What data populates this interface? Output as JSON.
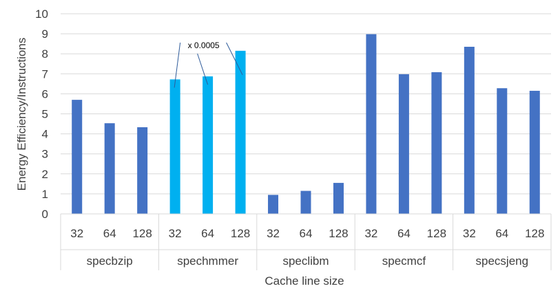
{
  "chart_data": {
    "type": "bar",
    "title": "",
    "xlabel": "Cache line size",
    "ylabel": "Energy Efficiency/Instructions",
    "ylim": [
      0,
      10
    ],
    "yticks": [
      "0",
      "1",
      "2",
      "3",
      "4",
      "5",
      "6",
      "7",
      "8",
      "9",
      "10"
    ],
    "grid": true,
    "groups": [
      {
        "name": "specbzip",
        "categories": [
          "32",
          "64",
          "128"
        ],
        "values": [
          5.7,
          4.53,
          4.33
        ],
        "color": "#4472C4"
      },
      {
        "name": "spechmmer",
        "categories": [
          "32",
          "64",
          "128"
        ],
        "values": [
          6.72,
          6.87,
          8.15
        ],
        "color": "#00B0F0"
      },
      {
        "name": "speclibm",
        "categories": [
          "32",
          "64",
          "128"
        ],
        "values": [
          0.95,
          1.15,
          1.55
        ],
        "color": "#4472C4"
      },
      {
        "name": "specmcf",
        "categories": [
          "32",
          "64",
          "128"
        ],
        "values": [
          8.98,
          6.98,
          7.08
        ],
        "color": "#4472C4"
      },
      {
        "name": "specsjeng",
        "categories": [
          "32",
          "64",
          "128"
        ],
        "values": [
          8.35,
          6.28,
          6.15
        ],
        "color": "#4472C4"
      }
    ],
    "annotation": {
      "text": "x 0.0005",
      "target_group": "spechmmer"
    }
  }
}
